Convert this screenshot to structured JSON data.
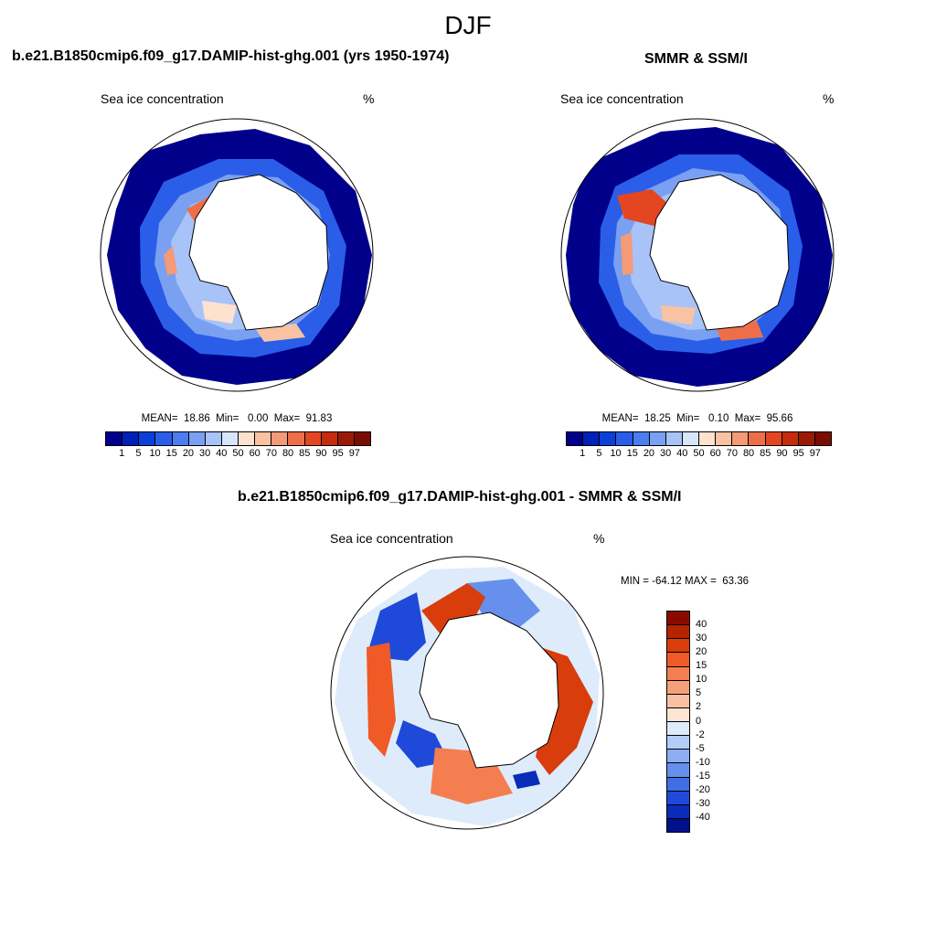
{
  "figure": {
    "title": "DJF"
  },
  "panels": [
    {
      "title": "b.e21.B1850cmip6.f09_g17.DAMIP-hist-ghg.001 (yrs 1950-1974)",
      "variable": "Sea ice concentration",
      "units": "%",
      "stats": "MEAN=  18.86  Min=   0.00  Max=  91.83",
      "mean": 18.86,
      "min": 0.0,
      "max": 91.83
    },
    {
      "title": "SMMR & SSM/I",
      "variable": "Sea ice concentration",
      "units": "%",
      "stats": "MEAN=  18.25  Min=   0.10  Max=  95.66",
      "mean": 18.25,
      "min": 0.1,
      "max": 95.66
    },
    {
      "title": "b.e21.B1850cmip6.f09_g17.DAMIP-hist-ghg.001 - SMMR & SSM/I",
      "variable": "Sea ice concentration",
      "units": "%",
      "stats": "MIN = -64.12 MAX =  63.36",
      "min": -64.12,
      "max": 63.36
    }
  ],
  "colorbar_abs": {
    "labels": [
      "1",
      "5",
      "10",
      "15",
      "20",
      "30",
      "40",
      "50",
      "60",
      "70",
      "80",
      "85",
      "90",
      "95",
      "97"
    ],
    "colors": [
      "#00008b",
      "#0022b8",
      "#0a3fd9",
      "#2a5ee8",
      "#4a7df0",
      "#7aa0f2",
      "#a8c3f7",
      "#d8e6fb",
      "#fde2cf",
      "#f9c2a3",
      "#f49a76",
      "#ef6e4a",
      "#e44622",
      "#c52b0d",
      "#9a1a05",
      "#7a0d02"
    ]
  },
  "colorbar_diff": {
    "labels": [
      "40",
      "30",
      "20",
      "15",
      "10",
      "5",
      "2",
      "0",
      "-2",
      "-5",
      "-10",
      "-15",
      "-20",
      "-30",
      "-40"
    ],
    "colors": [
      "#8b0a00",
      "#b52300",
      "#d93d0c",
      "#ef5a26",
      "#f47e50",
      "#f6a07a",
      "#f9c1a2",
      "#fde4d3",
      "#deebfb",
      "#b4cdf6",
      "#8aaef1",
      "#6690ec",
      "#3f6ee6",
      "#1f4ad9",
      "#0a2cb8",
      "#00108b"
    ]
  }
}
